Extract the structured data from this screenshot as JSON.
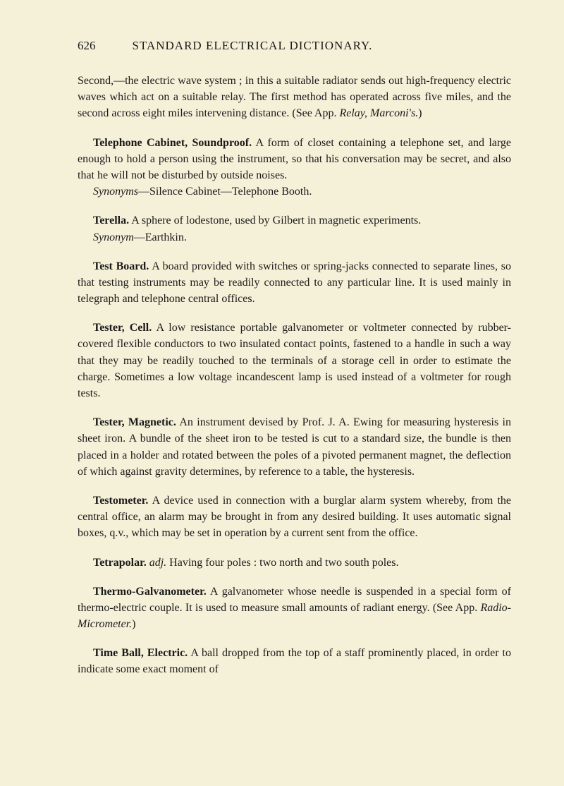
{
  "header": {
    "pageNumber": "626",
    "bookTitle": "STANDARD ELECTRICAL DICTIONARY."
  },
  "entries": [
    {
      "continuation": "Second,—the electric wave system ; in this a suitable radiator sends out high-frequency electric waves which act on a suitable relay. The first method has operated across five miles, and the second across eight miles intervening distance. (See App. ",
      "continuationItalic": "Relay, Marconi's.",
      "continuationEnd": ")"
    },
    {
      "term": "Telephone Cabinet, Soundproof.",
      "body": " A form of closet containing a telephone set, and large enough to hold a person using the instrument, so that his conversation may be secret, and also that he will not be disturbed by outside noises.",
      "synonymLabel": "Synonyms",
      "synonymText": "—Silence Cabinet—Telephone Booth."
    },
    {
      "term": "Terella.",
      "body": " A sphere of lodestone, used by Gilbert in magnetic experiments.",
      "synonymLabel": "Synonym",
      "synonymText": "—Earthkin."
    },
    {
      "term": "Test Board.",
      "body": " A board provided with switches or spring-jacks connected to separate lines, so that testing instruments may be readily connected to any particular line. It is used mainly in telegraph and telephone central offices."
    },
    {
      "term": "Tester, Cell.",
      "body": " A low resistance portable galvanometer or voltmeter connected by rubber-covered flexible conductors to two insulated contact points, fastened to a handle in such a way that they may be readily touched to the terminals of a storage cell in order to estimate the charge. Sometimes a low voltage incandescent lamp is used instead of a voltmeter for rough tests."
    },
    {
      "term": "Tester, Magnetic.",
      "body": " An instrument devised by Prof. J. A. Ewing for measuring hysteresis in sheet iron. A bundle of the sheet iron to be tested is cut to a standard size, the bundle is then placed in a holder and rotated between the poles of a pivoted permanent magnet, the deflection of which against gravity determines, by reference to a table, the hysteresis."
    },
    {
      "term": "Testometer.",
      "body": " A device used in connection with a burglar alarm system whereby, from the central office, an alarm may be brought in from any desired building. It uses automatic signal boxes, q.v., which may be set in operation by a current sent from the office."
    },
    {
      "term": "Tetrapolar.",
      "italic": " adj.",
      "body": " Having four poles : two north and two south poles."
    },
    {
      "term": "Thermo-Galvanometer.",
      "body": " A galvanometer whose needle is suspended in a special form of thermo-electric couple. It is used to measure small amounts of radiant energy. (See App. ",
      "bodyItalic": "Radio-Micrometer.",
      "bodyEnd": ")"
    },
    {
      "term": "Time Ball, Electric.",
      "body": " A ball dropped from the top of a staff prominently placed, in order to indicate some exact moment of"
    }
  ]
}
